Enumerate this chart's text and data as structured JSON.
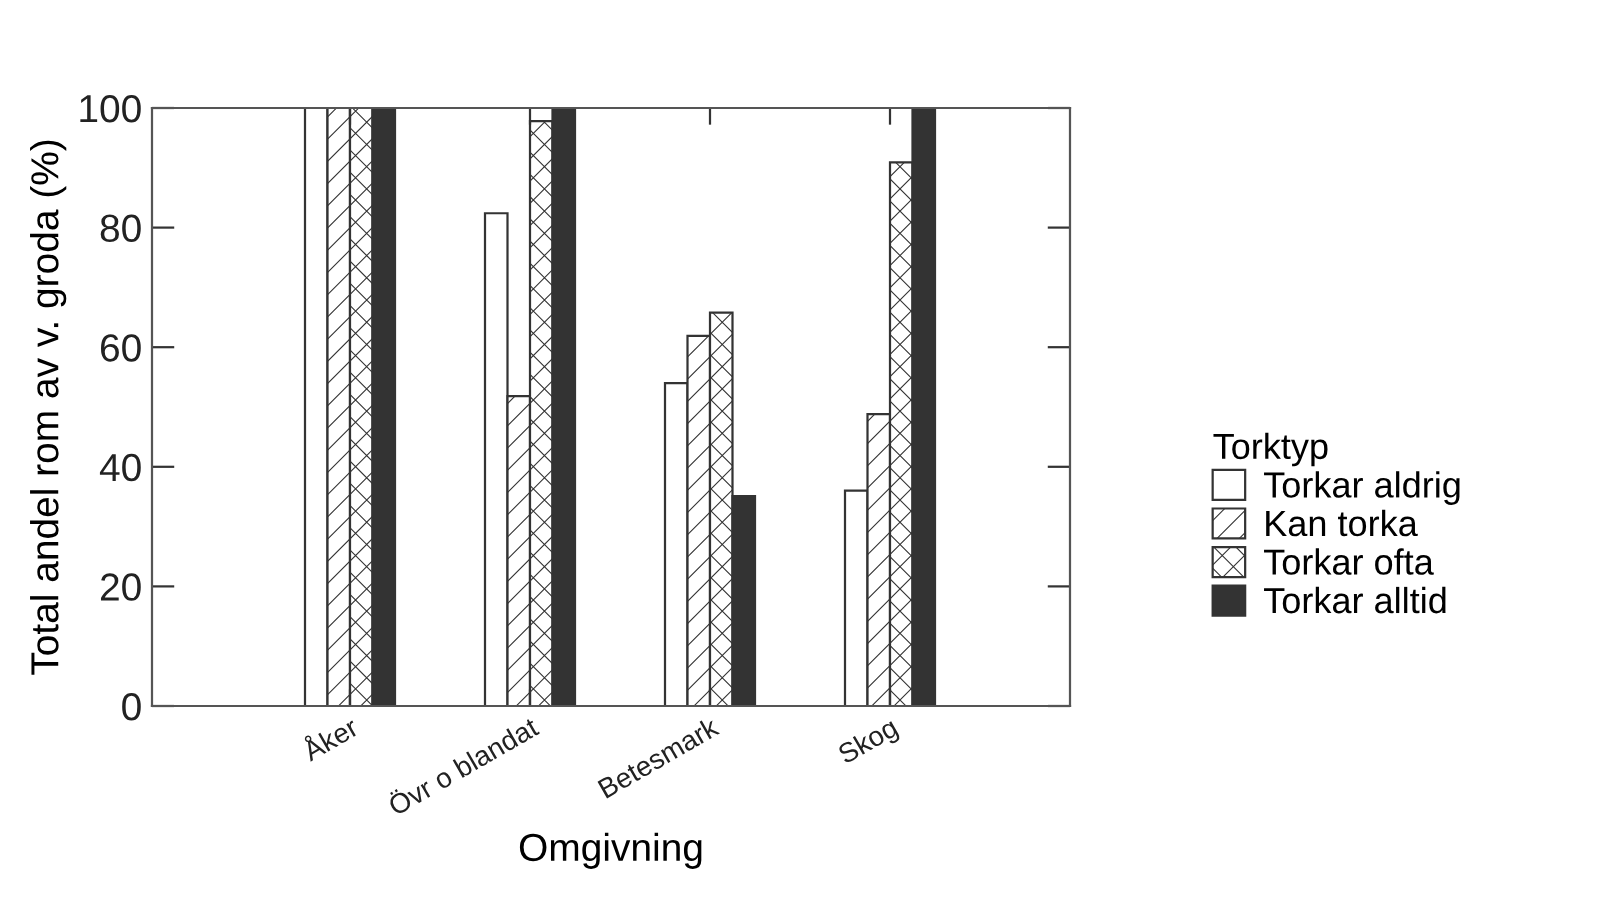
{
  "chart_data": {
    "type": "bar",
    "xlabel": "Omgivning",
    "ylabel": "Total andel rom av v. groda (%)",
    "legend_title": "Torktyp",
    "categories": [
      "Åker",
      "Övr o blandat",
      "Betesmark",
      "Skog"
    ],
    "series": [
      {
        "name": "Torkar aldrig",
        "color": "#ffffff",
        "values": [
          100,
          82.4,
          54,
          36
        ]
      },
      {
        "name": "Kan torka",
        "color": "#333333",
        "values": [
          100,
          51.8,
          61.9,
          48.8
        ]
      },
      {
        "name": "Torkar ofta",
        "color": "#333333",
        "values": [
          100,
          97.8,
          65.8,
          90.9
        ]
      },
      {
        "name": "Torkar alltid",
        "color": "#333333",
        "values": [
          100,
          100,
          35.1,
          100
        ]
      }
    ],
    "ylim": [
      0,
      100
    ],
    "yticks": [
      0,
      20,
      40,
      60,
      80,
      100
    ],
    "grid": false,
    "legend": "right"
  }
}
